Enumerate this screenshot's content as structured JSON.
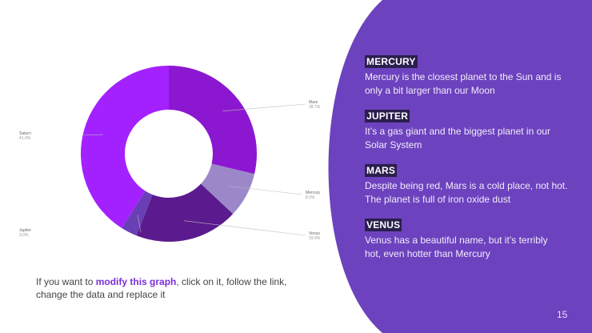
{
  "colors": {
    "panel": "#6d42be",
    "title_bg": "#2a1f4d",
    "accent": "#7b2fd8"
  },
  "info_panel": {
    "items": [
      {
        "title": "MERCURY",
        "desc1": "Mercury is the closest planet to the Sun and is",
        "desc2": "only a bit larger than our Moon"
      },
      {
        "title": "JUPITER",
        "desc1": "It’s a gas giant and the biggest planet in our",
        "desc2": "Solar System"
      },
      {
        "title": "MARS",
        "desc1": "Despite being red, Mars is a cold place, not hot.",
        "desc2": "The planet is full of iron oxide dust"
      },
      {
        "title": "VENUS",
        "desc1": "Venus has a beautiful name, but it’s terribly",
        "desc2": "hot, even hotter than Mercury"
      }
    ]
  },
  "caption": {
    "before": "If you want to ",
    "highlight": "modify this graph",
    "after": ", click on it, follow the link, change the data and replace it"
  },
  "page_number": "15",
  "chart_data": {
    "type": "pie",
    "categories": [
      "Mars",
      "Mercury",
      "Venus",
      "Jupiter",
      "Saturn"
    ],
    "values": [
      28.7,
      8.3,
      19.0,
      3.0,
      41.0
    ],
    "value_labels": [
      "28.7%",
      "8.3%",
      "19.0%",
      "3.0%",
      "41.0%"
    ],
    "colors": [
      "#8b18d0",
      "#9c88c9",
      "#5b1a8e",
      "#6a3fb5",
      "#a421ff"
    ],
    "donut": true
  }
}
